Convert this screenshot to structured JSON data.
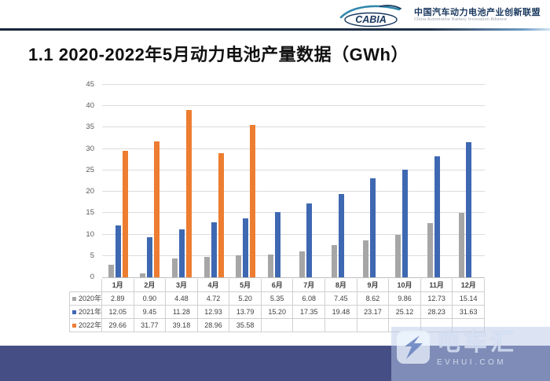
{
  "header": {
    "logo_text": "CABIA",
    "org_name_cn": "中国汽车动力电池产业创新联盟",
    "org_name_en": "China Automotive Battery Innovation Alliance"
  },
  "title": "1.1 2020-2022年5月动力电池产量数据（GWh）",
  "chart_data": {
    "type": "bar",
    "categories": [
      "1月",
      "2月",
      "3月",
      "4月",
      "5月",
      "6月",
      "7月",
      "8月",
      "9月",
      "10月",
      "11月",
      "12月"
    ],
    "series": [
      {
        "name": "2020年",
        "color": "#A6A6A6",
        "values": [
          2.89,
          0.9,
          4.48,
          4.72,
          5.2,
          5.35,
          6.08,
          7.45,
          8.62,
          9.86,
          12.73,
          15.14
        ]
      },
      {
        "name": "2021年",
        "color": "#3E68B2",
        "values": [
          12.05,
          9.45,
          11.28,
          12.93,
          13.79,
          15.2,
          17.35,
          19.48,
          23.17,
          25.12,
          28.23,
          31.63
        ]
      },
      {
        "name": "2022年",
        "color": "#ED7D31",
        "values": [
          29.66,
          31.77,
          39.18,
          28.96,
          35.58
        ]
      }
    ],
    "title": "1.1 2020-2022年5月动力电池产量数据（GWh）",
    "xlabel": "",
    "ylabel": "",
    "ylim": [
      0,
      45
    ],
    "ytick_step": 5,
    "grid": true,
    "legend_position": "table-left",
    "value_decimals": 2
  },
  "watermark": {
    "brand": "电车汇",
    "domain": "EVHUI.COM"
  },
  "theme": {
    "footer_color": "#454F85",
    "grid_color": "#DCDCDC",
    "tick_color": "#595959"
  }
}
